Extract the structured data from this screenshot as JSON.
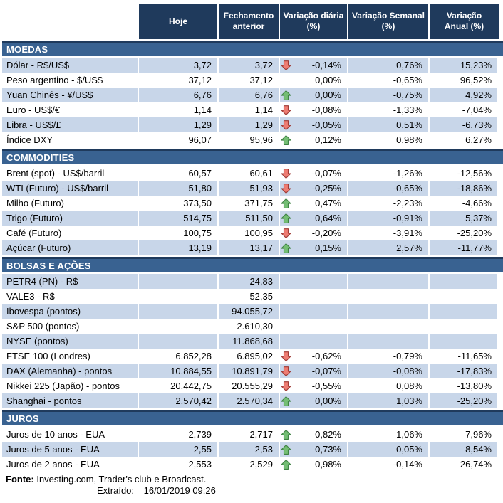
{
  "colors": {
    "header_navy": "#1F3A5C",
    "section_blue": "#396291",
    "row_light_blue": "#C8D6E9",
    "arrow_up_fill": "#74BE74",
    "arrow_up_stroke": "#3E8243",
    "arrow_down_fill": "#EE7C72",
    "arrow_down_stroke": "#9E3A35"
  },
  "chart_data": {
    "type": "table",
    "columns": [
      "Hoje",
      "Fechamento\nanterior",
      "Variação diária\n(%)",
      "Variação Semanal\n(%)",
      "Variação\nAnual (%)"
    ],
    "sections": [
      {
        "title": "MOEDAS",
        "rows": [
          {
            "label": "Dólar - R$/US$",
            "hoje": "3,72",
            "fechamento": "3,72",
            "trend": "down",
            "var_diaria": "-0,14%",
            "var_semanal": "0,76%",
            "var_anual": "15,23%"
          },
          {
            "label": "Peso argentino - $/US$",
            "hoje": "37,12",
            "fechamento": "37,12",
            "trend": "",
            "var_diaria": "0,00%",
            "var_semanal": "-0,65%",
            "var_anual": "96,52%"
          },
          {
            "label": "Yuan Chinês - ¥/US$",
            "hoje": "6,76",
            "fechamento": "6,76",
            "trend": "up",
            "var_diaria": "0,00%",
            "var_semanal": "-0,75%",
            "var_anual": "4,92%"
          },
          {
            "label": "Euro - US$/€",
            "hoje": "1,14",
            "fechamento": "1,14",
            "trend": "down",
            "var_diaria": "-0,08%",
            "var_semanal": "-1,33%",
            "var_anual": "-7,04%"
          },
          {
            "label": "Libra - US$/£",
            "hoje": "1,29",
            "fechamento": "1,29",
            "trend": "down",
            "var_diaria": "-0,05%",
            "var_semanal": "0,51%",
            "var_anual": "-6,73%"
          },
          {
            "label": "Índice DXY",
            "hoje": "96,07",
            "fechamento": "95,96",
            "trend": "up",
            "var_diaria": "0,12%",
            "var_semanal": "0,98%",
            "var_anual": "6,27%"
          }
        ]
      },
      {
        "title": "COMMODITIES",
        "rows": [
          {
            "label": "Brent (spot) - US$/barril",
            "hoje": "60,57",
            "fechamento": "60,61",
            "trend": "down",
            "var_diaria": "-0,07%",
            "var_semanal": "-1,26%",
            "var_anual": "-12,56%"
          },
          {
            "label": "WTI (Futuro) - US$/barril",
            "hoje": "51,80",
            "fechamento": "51,93",
            "trend": "down",
            "var_diaria": "-0,25%",
            "var_semanal": "-0,65%",
            "var_anual": "-18,86%"
          },
          {
            "label": "Milho (Futuro)",
            "hoje": "373,50",
            "fechamento": "371,75",
            "trend": "up",
            "var_diaria": "0,47%",
            "var_semanal": "-2,23%",
            "var_anual": "-4,66%"
          },
          {
            "label": "Trigo (Futuro)",
            "hoje": "514,75",
            "fechamento": "511,50",
            "trend": "up",
            "var_diaria": "0,64%",
            "var_semanal": "-0,91%",
            "var_anual": "5,37%"
          },
          {
            "label": "Café (Futuro)",
            "hoje": "100,75",
            "fechamento": "100,95",
            "trend": "down",
            "var_diaria": "-0,20%",
            "var_semanal": "-3,91%",
            "var_anual": "-25,20%"
          },
          {
            "label": "Açúcar (Futuro)",
            "hoje": "13,19",
            "fechamento": "13,17",
            "trend": "up",
            "var_diaria": "0,15%",
            "var_semanal": "2,57%",
            "var_anual": "-11,77%"
          }
        ]
      },
      {
        "title": "BOLSAS E AÇÕES",
        "rows": [
          {
            "label": "PETR4 (PN) - R$",
            "hoje": "",
            "fechamento": "24,83",
            "trend": "",
            "var_diaria": "",
            "var_semanal": "",
            "var_anual": ""
          },
          {
            "label": "VALE3 - R$",
            "hoje": "",
            "fechamento": "52,35",
            "trend": "",
            "var_diaria": "",
            "var_semanal": "",
            "var_anual": ""
          },
          {
            "label": "Ibovespa (pontos)",
            "hoje": "",
            "fechamento": "94.055,72",
            "trend": "",
            "var_diaria": "",
            "var_semanal": "",
            "var_anual": ""
          },
          {
            "label": "S&P 500 (pontos)",
            "hoje": "",
            "fechamento": "2.610,30",
            "trend": "",
            "var_diaria": "",
            "var_semanal": "",
            "var_anual": ""
          },
          {
            "label": "NYSE (pontos)",
            "hoje": "",
            "fechamento": "11.868,68",
            "trend": "",
            "var_diaria": "",
            "var_semanal": "",
            "var_anual": ""
          },
          {
            "label": "FTSE 100 (Londres)",
            "hoje": "6.852,28",
            "fechamento": "6.895,02",
            "trend": "down",
            "var_diaria": "-0,62%",
            "var_semanal": "-0,79%",
            "var_anual": "-11,65%"
          },
          {
            "label": "DAX (Alemanha) - pontos",
            "hoje": "10.884,55",
            "fechamento": "10.891,79",
            "trend": "down",
            "var_diaria": "-0,07%",
            "var_semanal": "-0,08%",
            "var_anual": "-17,83%"
          },
          {
            "label": "Nikkei 225 (Japão) - pontos",
            "hoje": "20.442,75",
            "fechamento": "20.555,29",
            "trend": "down",
            "var_diaria": "-0,55%",
            "var_semanal": "0,08%",
            "var_anual": "-13,80%"
          },
          {
            "label": "Shanghai - pontos",
            "hoje": "2.570,42",
            "fechamento": "2.570,34",
            "trend": "up",
            "var_diaria": "0,00%",
            "var_semanal": "1,03%",
            "var_anual": "-25,20%"
          }
        ]
      },
      {
        "title": "JUROS",
        "rows": [
          {
            "label": "Juros de 10 anos - EUA",
            "hoje": "2,739",
            "fechamento": "2,717",
            "trend": "up",
            "var_diaria": "0,82%",
            "var_semanal": "1,06%",
            "var_anual": "7,96%"
          },
          {
            "label": "Juros de 5 anos - EUA",
            "hoje": "2,55",
            "fechamento": "2,53",
            "trend": "up",
            "var_diaria": "0,73%",
            "var_semanal": "0,05%",
            "var_anual": "8,54%"
          },
          {
            "label": "Juros de 2 anos - EUA",
            "hoje": "2,553",
            "fechamento": "2,529",
            "trend": "up",
            "var_diaria": "0,98%",
            "var_semanal": "-0,14%",
            "var_anual": "26,74%"
          }
        ]
      }
    ]
  },
  "footer": {
    "fonte_label": "Fonte:",
    "fonte_text": "Investing.com, Trader's club e Broadcast.",
    "extraido_label": "Extraído:",
    "extraido_value": "16/01/2019 09:26"
  }
}
